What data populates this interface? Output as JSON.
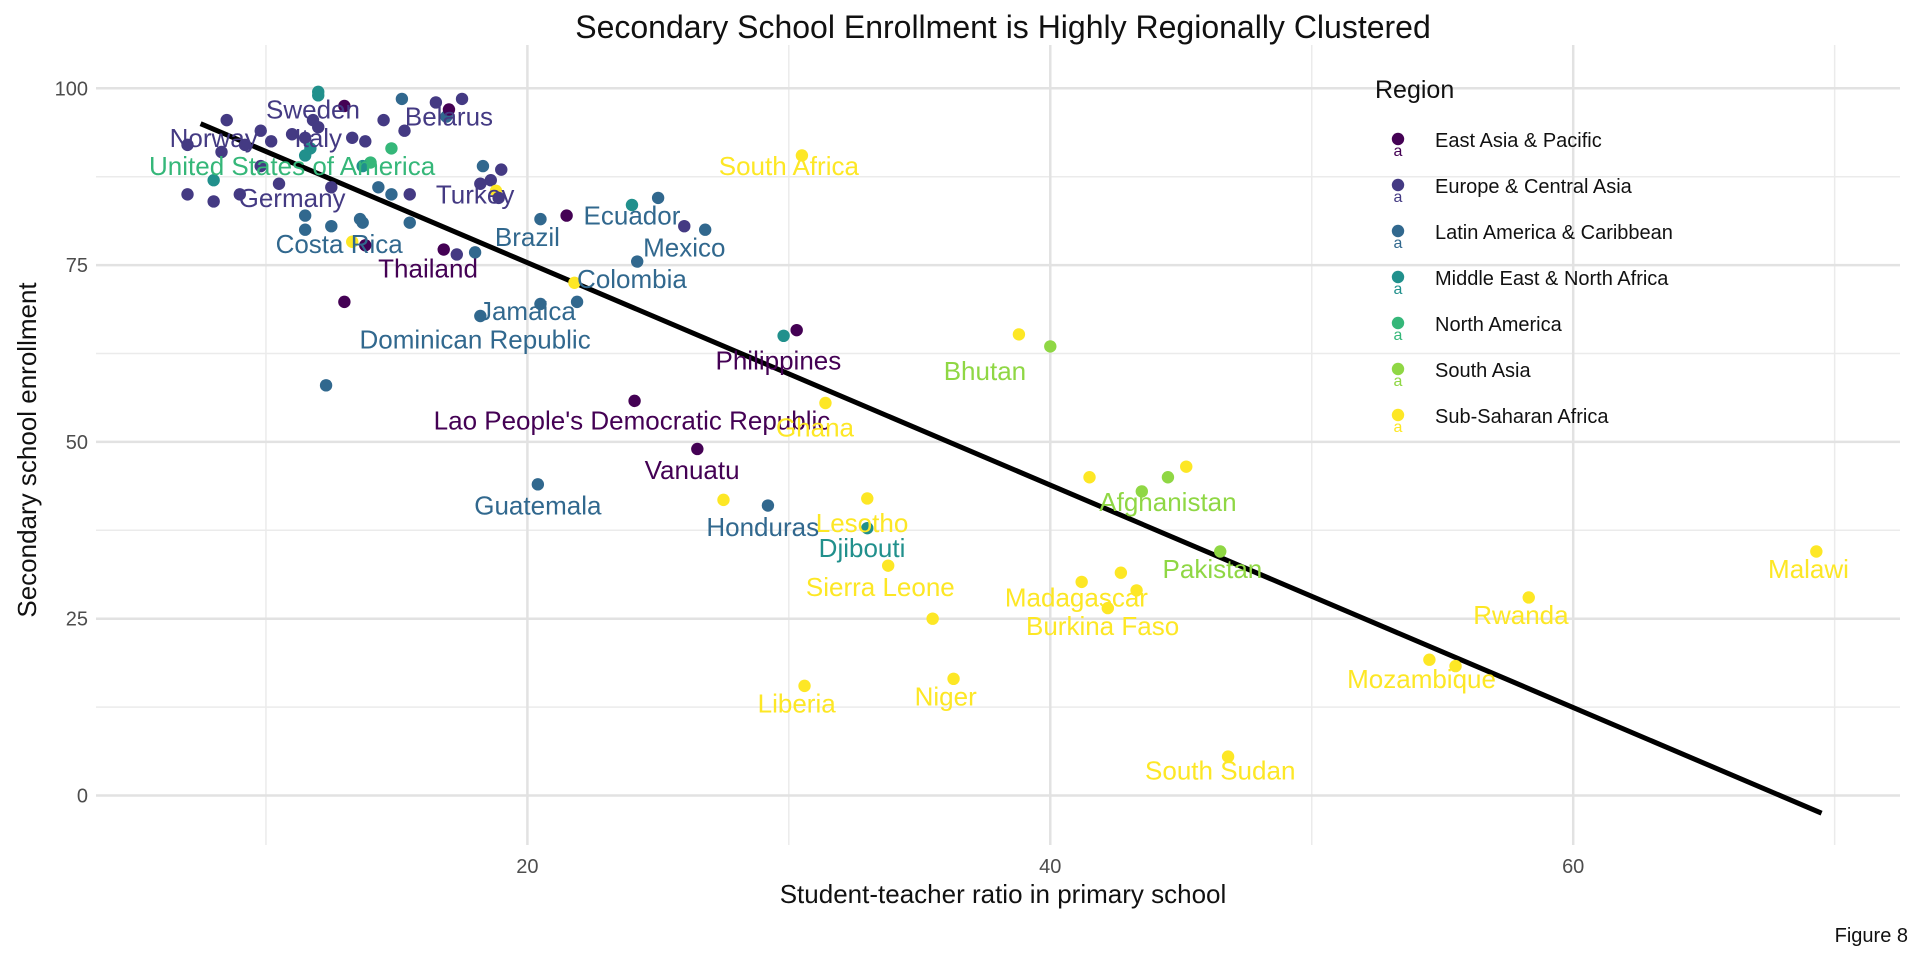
{
  "chart_data": {
    "type": "scatter",
    "title": "Secondary School Enrollment is Highly Regionally Clustered",
    "xlabel": "Student-teacher ratio in primary school",
    "ylabel": "Secondary school enrollment",
    "caption": "Figure 8",
    "xlim": [
      3.5,
      72.5
    ],
    "ylim": [
      -7,
      104
    ],
    "x_ticks": [
      20,
      40,
      60
    ],
    "y_ticks": [
      0,
      25,
      50,
      75,
      100
    ],
    "grid": true,
    "legend": {
      "title": "Region",
      "placement": "top-right",
      "key_glyph": "a"
    },
    "regions": [
      {
        "name": "East Asia & Pacific",
        "color": "#440154"
      },
      {
        "name": "Europe & Central Asia",
        "color": "#443A83"
      },
      {
        "name": "Latin America & Caribbean",
        "color": "#31688E"
      },
      {
        "name": "Middle East & North Africa",
        "color": "#21908C"
      },
      {
        "name": "North America",
        "color": "#35B779"
      },
      {
        "name": "South Asia",
        "color": "#8FD744"
      },
      {
        "name": "Sub-Saharan Africa",
        "color": "#FDE725"
      }
    ],
    "trend_line": {
      "x": [
        7.5,
        69.5
      ],
      "y": [
        95,
        -2.5
      ],
      "color": "#000000"
    },
    "points": [
      {
        "x": 12.0,
        "y": 99.5,
        "r": 3
      },
      {
        "x": 12.0,
        "y": 99.0,
        "r": 3
      },
      {
        "x": 13.0,
        "y": 97.5,
        "r": 0
      },
      {
        "x": 14.5,
        "y": 95.5,
        "r": 1
      },
      {
        "x": 15.2,
        "y": 98.5,
        "r": 2
      },
      {
        "x": 16.5,
        "y": 98.0,
        "r": 1
      },
      {
        "x": 17.5,
        "y": 98.5,
        "r": 1
      },
      {
        "x": 16.9,
        "y": 96.0,
        "r": 2
      },
      {
        "x": 17.0,
        "y": 97.0,
        "r": 0
      },
      {
        "x": 8.5,
        "y": 95.5,
        "r": 1
      },
      {
        "x": 9.8,
        "y": 94.0,
        "r": 1
      },
      {
        "x": 10.2,
        "y": 92.5,
        "r": 1
      },
      {
        "x": 11.0,
        "y": 93.5,
        "r": 1
      },
      {
        "x": 11.8,
        "y": 95.5,
        "r": 1
      },
      {
        "x": 11.5,
        "y": 93.0,
        "r": 1
      },
      {
        "x": 12.0,
        "y": 94.5,
        "r": 1
      },
      {
        "x": 13.3,
        "y": 93.0,
        "r": 1
      },
      {
        "x": 13.8,
        "y": 92.5,
        "r": 1
      },
      {
        "x": 15.3,
        "y": 94.0,
        "r": 1
      },
      {
        "x": 7.0,
        "y": 92.0,
        "r": 1
      },
      {
        "x": 8.3,
        "y": 91.0,
        "r": 1
      },
      {
        "x": 9.2,
        "y": 92.0,
        "r": 1
      },
      {
        "x": 11.7,
        "y": 91.5,
        "r": 3
      },
      {
        "x": 11.5,
        "y": 90.5,
        "r": 3
      },
      {
        "x": 14.0,
        "y": 89.5,
        "r": 4
      },
      {
        "x": 13.7,
        "y": 89.0,
        "r": 3
      },
      {
        "x": 14.8,
        "y": 91.5,
        "r": 4
      },
      {
        "x": 9.8,
        "y": 89.0,
        "r": 1
      },
      {
        "x": 18.3,
        "y": 89.0,
        "r": 2
      },
      {
        "x": 19.0,
        "y": 88.5,
        "r": 1
      },
      {
        "x": 18.6,
        "y": 87.0,
        "r": 1
      },
      {
        "x": 8.0,
        "y": 87.0,
        "r": 3
      },
      {
        "x": 10.5,
        "y": 86.5,
        "r": 1
      },
      {
        "x": 12.5,
        "y": 86.0,
        "r": 1
      },
      {
        "x": 14.3,
        "y": 86.0,
        "r": 2
      },
      {
        "x": 18.2,
        "y": 86.5,
        "r": 1
      },
      {
        "x": 7.0,
        "y": 85.0,
        "r": 1
      },
      {
        "x": 9.0,
        "y": 85.0,
        "r": 1
      },
      {
        "x": 14.8,
        "y": 85.0,
        "r": 2
      },
      {
        "x": 15.5,
        "y": 85.0,
        "r": 1
      },
      {
        "x": 18.8,
        "y": 85.5,
        "r": 6
      },
      {
        "x": 18.9,
        "y": 84.5,
        "r": 1
      },
      {
        "x": 8.0,
        "y": 84.0,
        "r": 1
      },
      {
        "x": 11.5,
        "y": 82.0,
        "r": 2
      },
      {
        "x": 20.5,
        "y": 81.5,
        "r": 2
      },
      {
        "x": 21.5,
        "y": 82.0,
        "r": 0
      },
      {
        "x": 24.0,
        "y": 83.5,
        "r": 3
      },
      {
        "x": 25.0,
        "y": 84.5,
        "r": 2
      },
      {
        "x": 11.5,
        "y": 80.0,
        "r": 2
      },
      {
        "x": 12.5,
        "y": 80.5,
        "r": 2
      },
      {
        "x": 13.6,
        "y": 81.5,
        "r": 2
      },
      {
        "x": 13.7,
        "y": 81.0,
        "r": 2
      },
      {
        "x": 15.5,
        "y": 81.0,
        "r": 2
      },
      {
        "x": 26.0,
        "y": 80.5,
        "r": 1
      },
      {
        "x": 26.8,
        "y": 80.0,
        "r": 2
      },
      {
        "x": 13.3,
        "y": 78.3,
        "r": 6
      },
      {
        "x": 13.8,
        "y": 77.8,
        "r": 0
      },
      {
        "x": 16.8,
        "y": 77.2,
        "r": 0
      },
      {
        "x": 17.3,
        "y": 76.5,
        "r": 1
      },
      {
        "x": 18.0,
        "y": 76.8,
        "r": 2
      },
      {
        "x": 24.2,
        "y": 75.5,
        "r": 2
      },
      {
        "x": 13.0,
        "y": 69.8,
        "r": 0
      },
      {
        "x": 20.5,
        "y": 69.5,
        "r": 2
      },
      {
        "x": 21.9,
        "y": 69.8,
        "r": 2
      },
      {
        "x": 21.8,
        "y": 72.5,
        "r": 6
      },
      {
        "x": 18.2,
        "y": 67.8,
        "r": 2
      },
      {
        "x": 29.8,
        "y": 65.0,
        "r": 3
      },
      {
        "x": 30.3,
        "y": 65.8,
        "r": 0
      },
      {
        "x": 38.8,
        "y": 65.2,
        "r": 6
      },
      {
        "x": 40.0,
        "y": 63.5,
        "r": 5
      },
      {
        "x": 30.5,
        "y": 90.5,
        "r": 6
      },
      {
        "x": 12.3,
        "y": 58.0,
        "r": 2
      },
      {
        "x": 24.1,
        "y": 55.8,
        "r": 0
      },
      {
        "x": 31.4,
        "y": 55.5,
        "r": 6
      },
      {
        "x": 26.5,
        "y": 49.0,
        "r": 0
      },
      {
        "x": 20.4,
        "y": 44.0,
        "r": 2
      },
      {
        "x": 29.2,
        "y": 41.0,
        "r": 2
      },
      {
        "x": 27.5,
        "y": 41.8,
        "r": 6
      },
      {
        "x": 33.0,
        "y": 42.0,
        "r": 6
      },
      {
        "x": 33.0,
        "y": 37.8,
        "r": 3
      },
      {
        "x": 33.8,
        "y": 32.5,
        "r": 6
      },
      {
        "x": 41.5,
        "y": 45.0,
        "r": 6
      },
      {
        "x": 43.5,
        "y": 43.0,
        "r": 5
      },
      {
        "x": 44.5,
        "y": 45.0,
        "r": 5
      },
      {
        "x": 45.2,
        "y": 46.5,
        "r": 6
      },
      {
        "x": 46.5,
        "y": 34.5,
        "r": 5
      },
      {
        "x": 41.2,
        "y": 30.2,
        "r": 6
      },
      {
        "x": 42.7,
        "y": 31.5,
        "r": 6
      },
      {
        "x": 43.3,
        "y": 29.0,
        "r": 6
      },
      {
        "x": 42.2,
        "y": 26.5,
        "r": 6
      },
      {
        "x": 35.5,
        "y": 25.0,
        "r": 6
      },
      {
        "x": 36.3,
        "y": 16.5,
        "r": 6
      },
      {
        "x": 30.6,
        "y": 15.5,
        "r": 6
      },
      {
        "x": 46.8,
        "y": 5.5,
        "r": 6
      },
      {
        "x": 58.3,
        "y": 28.0,
        "r": 6
      },
      {
        "x": 54.5,
        "y": 19.2,
        "r": 6
      },
      {
        "x": 55.5,
        "y": 18.3,
        "r": 6
      },
      {
        "x": 69.3,
        "y": 34.5,
        "r": 6
      }
    ],
    "labels": [
      {
        "text": "Sweden",
        "x": 11.8,
        "y": 97.0,
        "r": 1
      },
      {
        "text": "Belarus",
        "x": 17.0,
        "y": 96.0,
        "r": 1
      },
      {
        "text": "Norway",
        "x": 8.0,
        "y": 93.0,
        "r": 1
      },
      {
        "text": "Italy",
        "x": 12.0,
        "y": 93.0,
        "r": 1
      },
      {
        "text": "United States of America",
        "x": 11.0,
        "y": 89.0,
        "r": 4
      },
      {
        "text": "Germany",
        "x": 11.0,
        "y": 84.5,
        "r": 1
      },
      {
        "text": "Turkey",
        "x": 18.0,
        "y": 85.0,
        "r": 1
      },
      {
        "text": "South Africa",
        "x": 30.0,
        "y": 89.0,
        "r": 6
      },
      {
        "text": "Ecuador",
        "x": 24.0,
        "y": 82.0,
        "r": 2
      },
      {
        "text": "Brazil",
        "x": 20.0,
        "y": 79.0,
        "r": 2
      },
      {
        "text": "Costa Rica",
        "x": 12.8,
        "y": 78.0,
        "r": 2
      },
      {
        "text": "Mexico",
        "x": 26.0,
        "y": 77.5,
        "r": 2
      },
      {
        "text": "Thailand",
        "x": 16.2,
        "y": 74.5,
        "r": 0
      },
      {
        "text": "Colombia",
        "x": 24.0,
        "y": 73.0,
        "r": 2
      },
      {
        "text": "Jamaica",
        "x": 20.0,
        "y": 68.5,
        "r": 2
      },
      {
        "text": "Dominican Republic",
        "x": 18.0,
        "y": 64.5,
        "r": 2
      },
      {
        "text": "Philippines",
        "x": 29.6,
        "y": 61.5,
        "r": 0
      },
      {
        "text": "Bhutan",
        "x": 37.5,
        "y": 60.0,
        "r": 5
      },
      {
        "text": "Lao People's Democratic Republic",
        "x": 24.0,
        "y": 53.0,
        "r": 0
      },
      {
        "text": "Ghana",
        "x": 31.0,
        "y": 52.0,
        "r": 6
      },
      {
        "text": "Vanuatu",
        "x": 26.3,
        "y": 46.0,
        "r": 0
      },
      {
        "text": "Afghanistan",
        "x": 44.5,
        "y": 41.5,
        "r": 5
      },
      {
        "text": "Guatemala",
        "x": 20.4,
        "y": 41.0,
        "r": 2
      },
      {
        "text": "Lesotho",
        "x": 32.8,
        "y": 38.5,
        "r": 6
      },
      {
        "text": "Honduras",
        "x": 29.0,
        "y": 38.0,
        "r": 2
      },
      {
        "text": "Djibouti",
        "x": 32.8,
        "y": 35.0,
        "r": 3
      },
      {
        "text": "Pakistan",
        "x": 46.2,
        "y": 32.0,
        "r": 5
      },
      {
        "text": "Malawi",
        "x": 69.0,
        "y": 32.0,
        "r": 6
      },
      {
        "text": "Sierra Leone",
        "x": 33.5,
        "y": 29.5,
        "r": 6
      },
      {
        "text": "Madagascar",
        "x": 41.0,
        "y": 28.0,
        "r": 6
      },
      {
        "text": "Rwanda",
        "x": 58.0,
        "y": 25.5,
        "r": 6
      },
      {
        "text": "Burkina Faso",
        "x": 42.0,
        "y": 24.0,
        "r": 6
      },
      {
        "text": "Mozambique",
        "x": 54.2,
        "y": 16.5,
        "r": 6
      },
      {
        "text": "Niger",
        "x": 36.0,
        "y": 14.0,
        "r": 6
      },
      {
        "text": "Liberia",
        "x": 30.3,
        "y": 13.0,
        "r": 6
      },
      {
        "text": "South Sudan",
        "x": 46.5,
        "y": 3.5,
        "r": 6
      }
    ]
  }
}
